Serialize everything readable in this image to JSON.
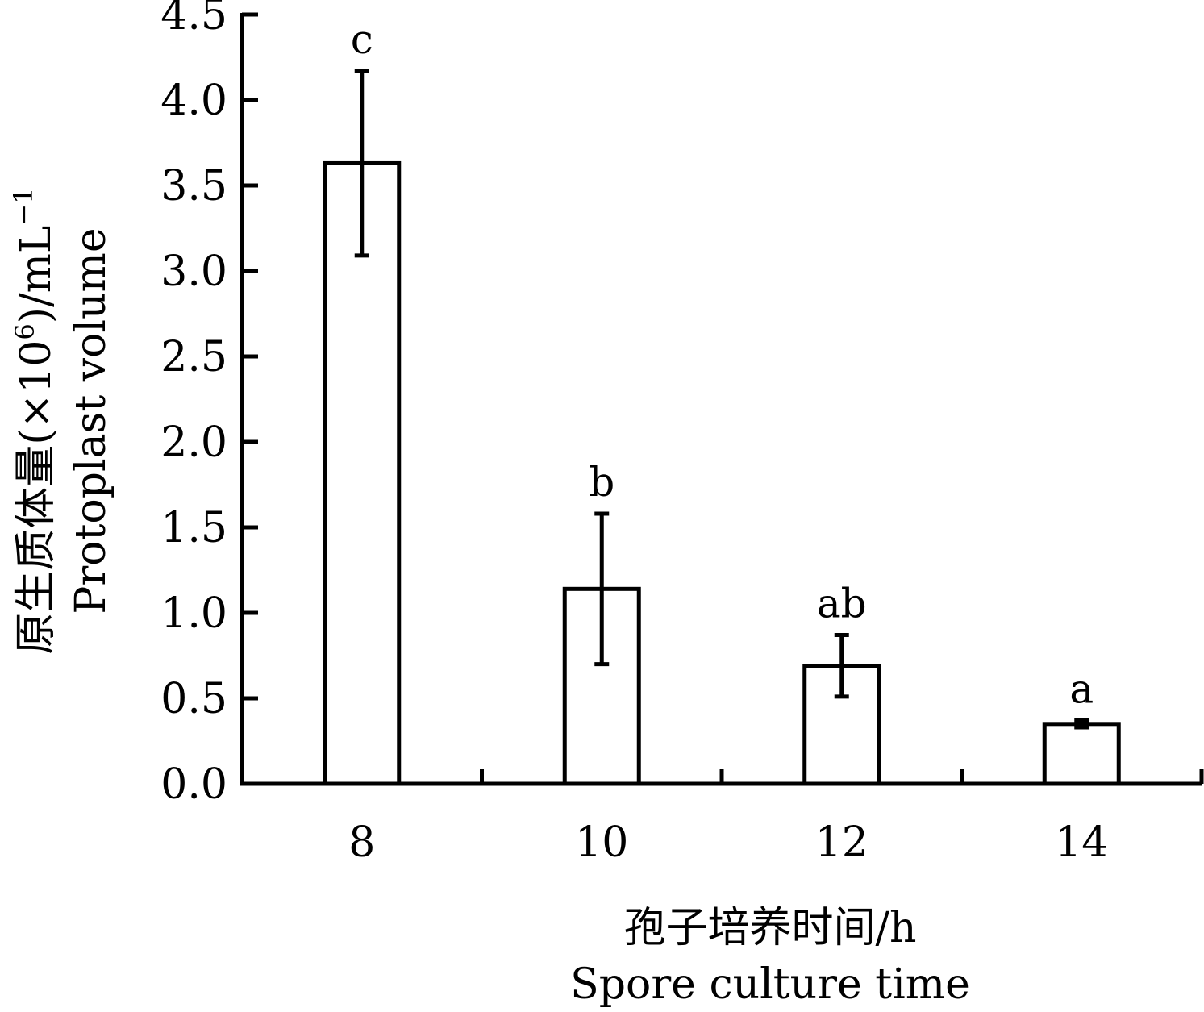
{
  "chart_data": {
    "type": "bar",
    "categories": [
      "8",
      "10",
      "12",
      "14"
    ],
    "values": [
      3.63,
      1.14,
      0.69,
      0.35
    ],
    "errors": [
      0.54,
      0.44,
      0.18,
      0.02
    ],
    "significance": [
      "c",
      "b",
      "ab",
      "a"
    ],
    "ylim": [
      0,
      4.5
    ],
    "yticks": [
      "0.0",
      "0.5",
      "1.0",
      "1.5",
      "2.0",
      "2.5",
      "3.0",
      "3.5",
      "4.0",
      "4.5"
    ],
    "xlabel_cn": "孢子培养时间/h",
    "xlabel_en": "Spore culture time",
    "ylabel_cn_main": "原生质体量(×10",
    "ylabel_cn_sup": "6",
    "ylabel_cn_unit": ")/mL",
    "ylabel_cn_unit_sup": "−1",
    "ylabel_en": "Protoplast volume",
    "grid": false,
    "legend": "none",
    "bar_fill": "#ffffff",
    "bar_stroke": "#000000"
  }
}
